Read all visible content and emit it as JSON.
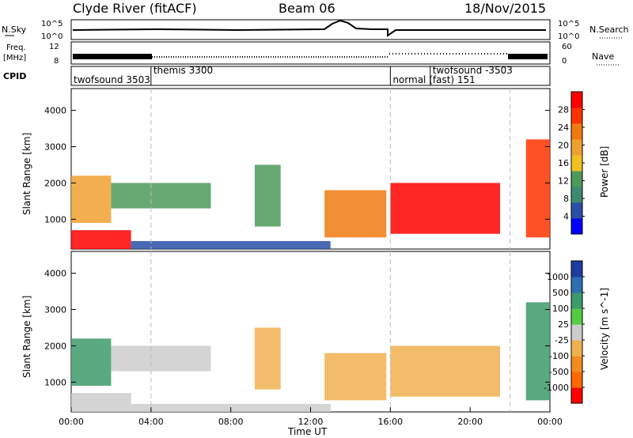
{
  "header": {
    "station": "Clyde River (fitACF)",
    "beam": "Beam 06",
    "date": "18/Nov/2015"
  },
  "panels": {
    "nsky": {
      "left_label": "N.Sky",
      "left_ticks": [
        "10^5",
        "10^0"
      ],
      "right_ticks": [
        "10^5",
        "10^0"
      ],
      "right_label": "N.Search"
    },
    "freq": {
      "left_label_1": "Freq.",
      "left_label_2": "[MHz]",
      "left_ticks": [
        "12",
        "8"
      ],
      "right_ticks": [
        "60",
        "0"
      ],
      "right_label": "Nave"
    },
    "cpid": {
      "label": "CPID",
      "segments": [
        {
          "name": "twofsound 3503",
          "t0": 0.0,
          "t1": 4.0
        },
        {
          "name": "themis 3300",
          "t0": 4.0,
          "t1": 16.0
        },
        {
          "name": "normal (fast) 151",
          "t0": 16.0,
          "t1": 18.0
        },
        {
          "name": "twofsound -3503",
          "t0": 18.0,
          "t1": 22.0
        }
      ]
    }
  },
  "colors": {
    "power_scale": [
      "#0000ff",
      "#2a4fa8",
      "#3c8a72",
      "#4c9a5a",
      "#f0c020",
      "#f0a030",
      "#f07a10",
      "#ff3300",
      "#ff0000"
    ],
    "velocity_scale": [
      "#ff0000",
      "#ff6a00",
      "#f08c20",
      "#f0b050",
      "#cccccc",
      "#55cc44",
      "#3d9a6a",
      "#2e6fb0",
      "#1f3ca0"
    ]
  },
  "chart_data": [
    {
      "type": "heatmap",
      "title": "Power",
      "ylabel": "Slant Range [km]",
      "ylim": [
        180,
        4600
      ],
      "yticks": [
        1000,
        2000,
        3000,
        4000
      ],
      "xlim": [
        0,
        24
      ],
      "colorbar": {
        "label": "Power [dB]",
        "ticks": [
          "28",
          "24",
          "20",
          "16",
          "12",
          "8",
          "4"
        ],
        "range": [
          0,
          32
        ]
      },
      "regions": [
        {
          "t0": 0.0,
          "t1": 3.0,
          "r0": 180,
          "r1": 700,
          "value": 30
        },
        {
          "t0": 0.0,
          "t1": 2.0,
          "r0": 900,
          "r1": 2200,
          "value": 20
        },
        {
          "t0": 2.0,
          "t1": 7.0,
          "r0": 1300,
          "r1": 2000,
          "value": 14
        },
        {
          "t0": 3.0,
          "t1": 13.0,
          "r0": 180,
          "r1": 400,
          "value": 6
        },
        {
          "t0": 9.2,
          "t1": 10.5,
          "r0": 800,
          "r1": 2500,
          "value": 12
        },
        {
          "t0": 12.7,
          "t1": 15.8,
          "r0": 500,
          "r1": 1800,
          "value": 22
        },
        {
          "t0": 16.0,
          "t1": 21.5,
          "r0": 600,
          "r1": 2000,
          "value": 30
        },
        {
          "t0": 22.8,
          "t1": 24.0,
          "r0": 500,
          "r1": 3200,
          "value": 26
        }
      ]
    },
    {
      "type": "heatmap",
      "title": "Velocity",
      "ylabel": "Slant Range [km]",
      "xlabel": "Time UT",
      "ylim": [
        180,
        4600
      ],
      "yticks": [
        1000,
        2000,
        3000,
        4000
      ],
      "xlim": [
        0,
        24
      ],
      "xticks": [
        "00:00",
        "04:00",
        "08:00",
        "12:00",
        "16:00",
        "20:00",
        "00:00"
      ],
      "colorbar": {
        "label": "Velocity [m s^-1]",
        "ticks": [
          "1000",
          "500",
          "100",
          "25",
          "-25",
          "-100",
          "-500",
          "-1000"
        ],
        "range": [
          -1200,
          1200
        ]
      },
      "regions": [
        {
          "t0": 0.0,
          "t1": 2.0,
          "r0": 900,
          "r1": 2200,
          "value": 400
        },
        {
          "t0": 0.0,
          "t1": 3.0,
          "r0": 180,
          "r1": 700,
          "value": 20
        },
        {
          "t0": 2.0,
          "t1": 7.0,
          "r0": 1300,
          "r1": 2000,
          "value": 60
        },
        {
          "t0": 3.0,
          "t1": 13.0,
          "r0": 180,
          "r1": 400,
          "value": 50
        },
        {
          "t0": 9.2,
          "t1": 10.5,
          "r0": 800,
          "r1": 2500,
          "value": -150
        },
        {
          "t0": 12.7,
          "t1": 15.8,
          "r0": 500,
          "r1": 1800,
          "value": -250
        },
        {
          "t0": 16.0,
          "t1": 21.5,
          "r0": 600,
          "r1": 2000,
          "value": -150
        },
        {
          "t0": 22.8,
          "t1": 24.0,
          "r0": 500,
          "r1": 3200,
          "value": 600
        }
      ]
    }
  ]
}
